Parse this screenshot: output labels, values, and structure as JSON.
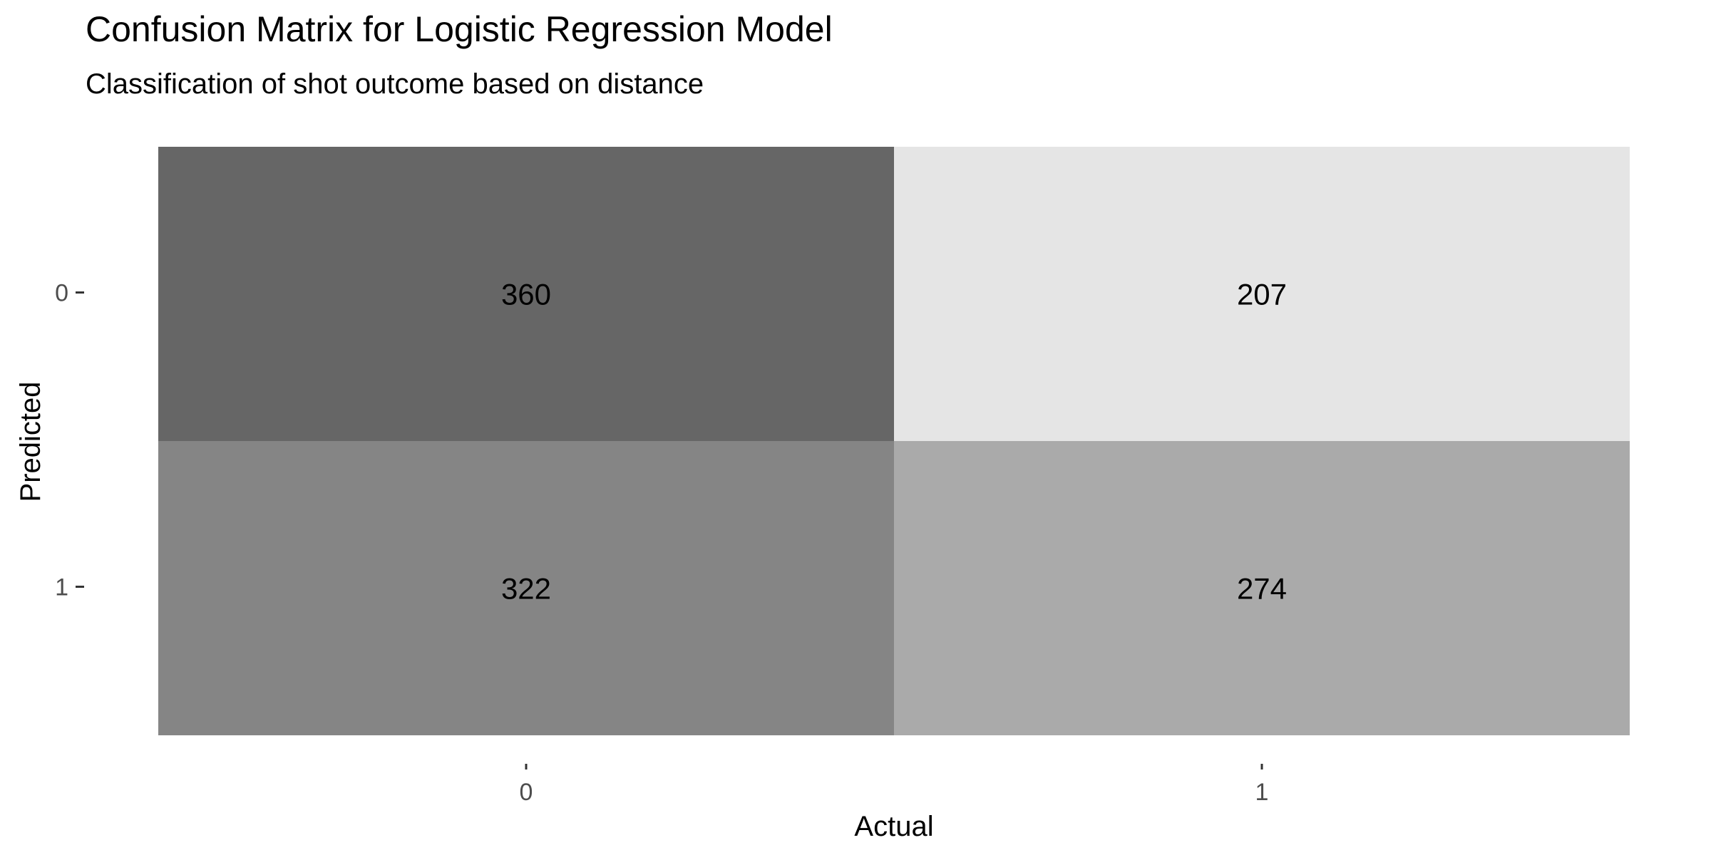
{
  "chart_data": {
    "type": "heatmap",
    "title": "Confusion Matrix for Logistic Regression Model",
    "subtitle": "Classification of shot outcome based on distance",
    "xlabel": "Actual",
    "ylabel": "Predicted",
    "x_categories": [
      "0",
      "1"
    ],
    "y_categories": [
      "0",
      "1"
    ],
    "cells": [
      {
        "actual": "0",
        "predicted": "0",
        "value": 360,
        "fill": "#666666"
      },
      {
        "actual": "1",
        "predicted": "0",
        "value": 207,
        "fill": "#e5e5e5"
      },
      {
        "actual": "0",
        "predicted": "1",
        "value": 322,
        "fill": "#858585"
      },
      {
        "actual": "1",
        "predicted": "1",
        "value": 274,
        "fill": "#aaaaaa"
      }
    ],
    "grid": false,
    "legend": "none"
  }
}
